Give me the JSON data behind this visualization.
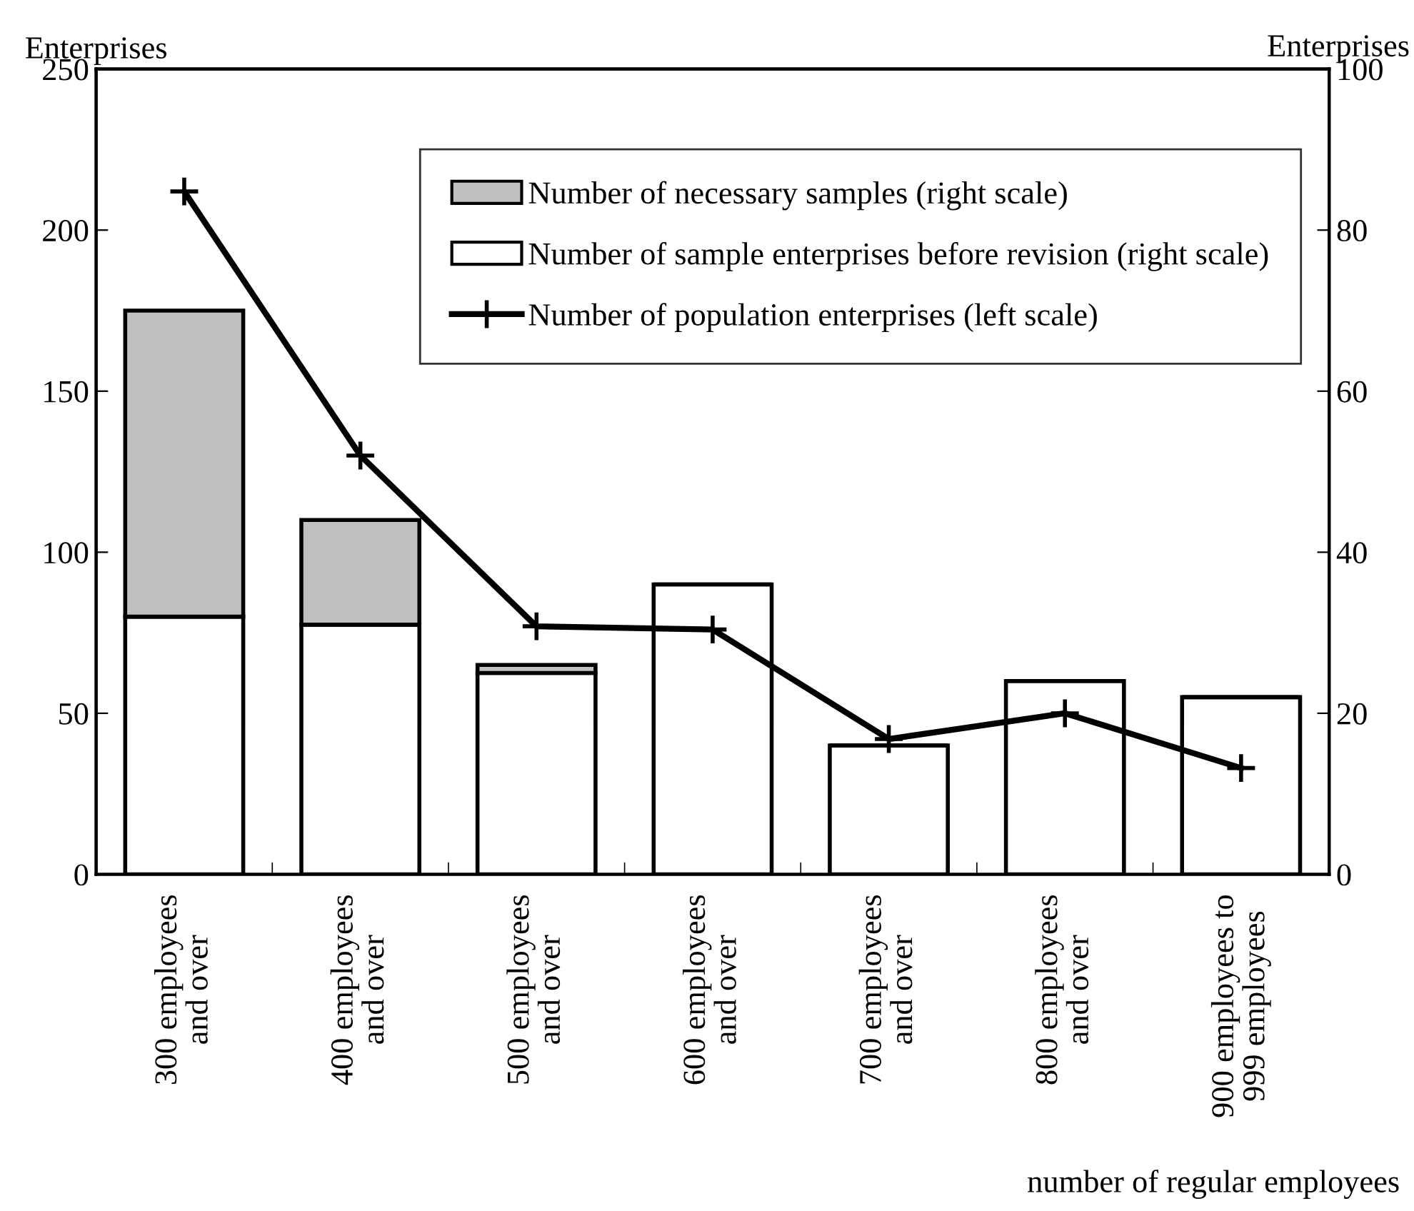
{
  "chart_data": {
    "type": "bar",
    "stacked": true,
    "xlabel": "number of regular employees",
    "ylabel": "Enterprises",
    "y2label": "Enterprises",
    "categories": [
      "300 employees\nand over",
      "400 employees\nand over",
      "500 employees\nand over",
      "600 employees\nand over",
      "700 employees\nand over",
      "800 employees\nand over",
      "900 employees to\n999 employees"
    ],
    "series": [
      {
        "name": "Number of sample enterprises before revision (right scale)",
        "axis": "y2",
        "color": "#ffffff",
        "values": [
          32,
          31,
          25,
          36,
          16,
          24,
          22
        ]
      },
      {
        "name": "Number of necessary samples (right scale)",
        "axis": "y2",
        "color": "#c0c0c0",
        "values": [
          38,
          13,
          1,
          null,
          null,
          null,
          null
        ]
      },
      {
        "name": "Number of population enterprises (left scale)",
        "type": "line",
        "axis": "y",
        "color": "#000000",
        "marker": "cross",
        "values": [
          212,
          130,
          77,
          76,
          42,
          50,
          33
        ]
      }
    ],
    "ylim": [
      0,
      250
    ],
    "yticks": [
      0,
      50,
      100,
      150,
      200,
      250
    ],
    "y2lim": [
      0,
      100
    ],
    "y2ticks": [
      0,
      20,
      40,
      60,
      80,
      100
    ],
    "grid": false,
    "legend": "top right"
  }
}
